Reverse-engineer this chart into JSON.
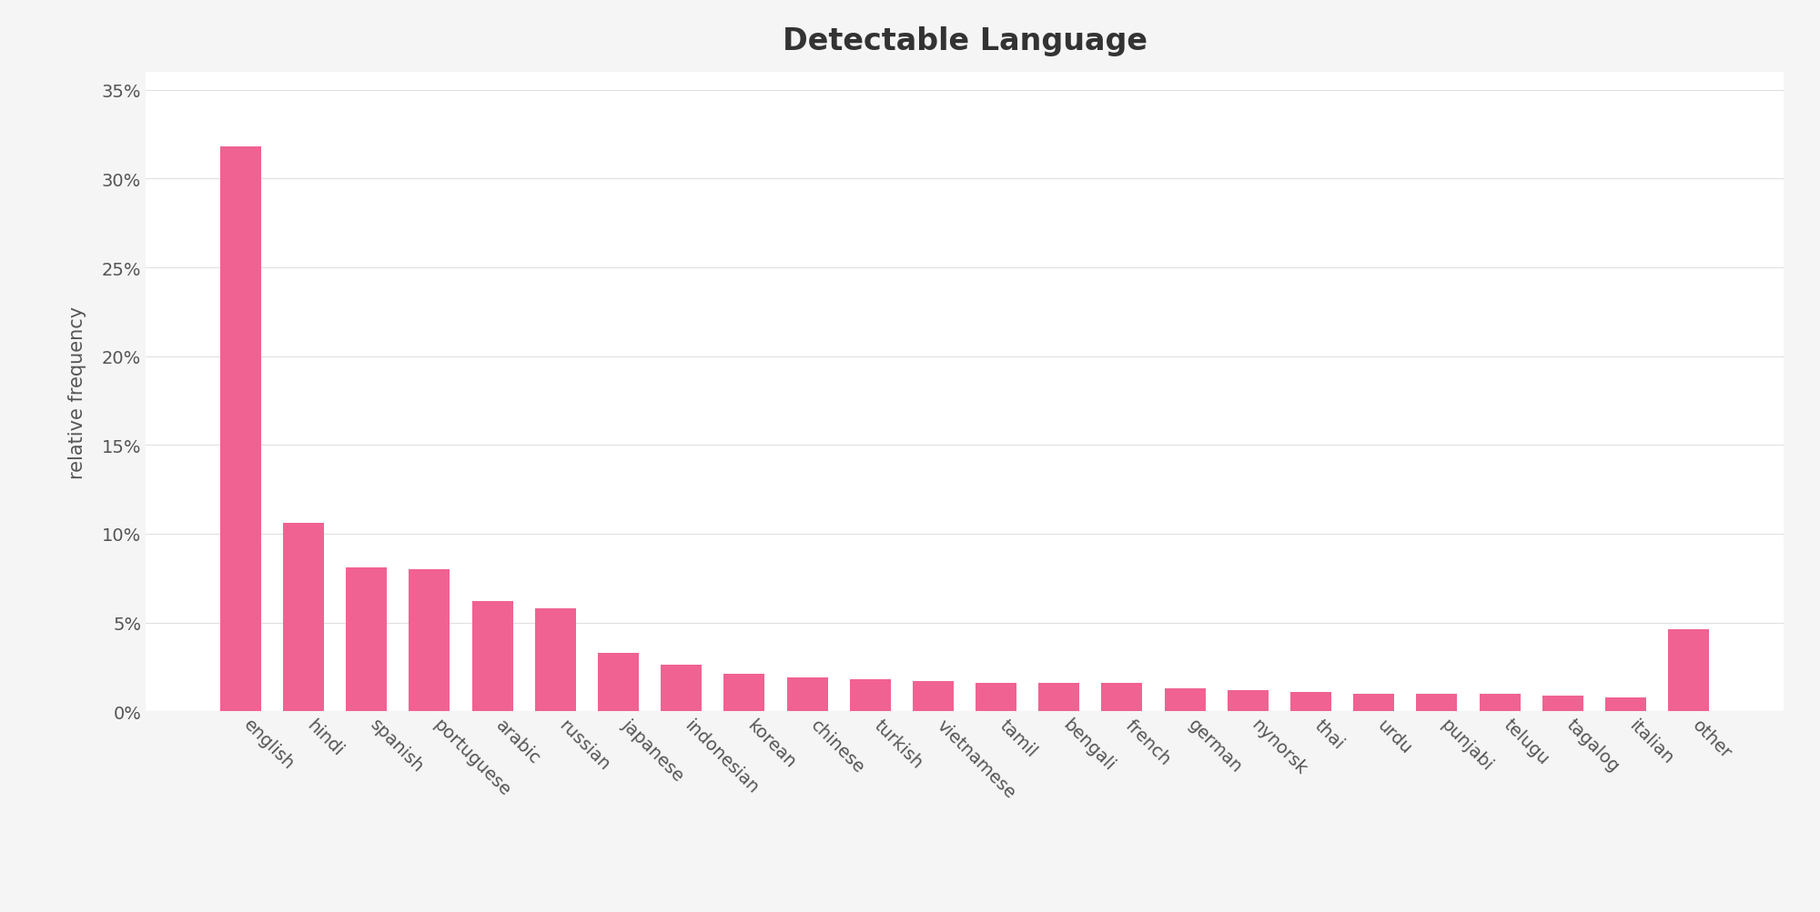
{
  "title": "Detectable Language",
  "ylabel": "relative frequency",
  "categories": [
    "english",
    "hindi",
    "spanish",
    "portuguese",
    "arabic",
    "russian",
    "japanese",
    "indonesian",
    "korean",
    "chinese",
    "turkish",
    "vietnamese",
    "tamil",
    "bengali",
    "french",
    "german",
    "nynorsk",
    "thai",
    "urdu",
    "punjabi",
    "telugu",
    "tagalog",
    "italian",
    "other"
  ],
  "values": [
    0.318,
    0.106,
    0.081,
    0.08,
    0.062,
    0.058,
    0.033,
    0.026,
    0.021,
    0.019,
    0.018,
    0.017,
    0.016,
    0.016,
    0.016,
    0.013,
    0.012,
    0.011,
    0.01,
    0.01,
    0.01,
    0.009,
    0.008,
    0.046
  ],
  "bar_color": "#f06292",
  "figure_background": "#f5f5f5",
  "plot_background": "#ffffff",
  "ylim": [
    0,
    0.36
  ],
  "yticks": [
    0.0,
    0.05,
    0.1,
    0.15,
    0.2,
    0.25,
    0.3,
    0.35
  ],
  "title_fontsize": 24,
  "axis_label_fontsize": 15,
  "tick_fontsize": 14,
  "bar_width": 0.65
}
